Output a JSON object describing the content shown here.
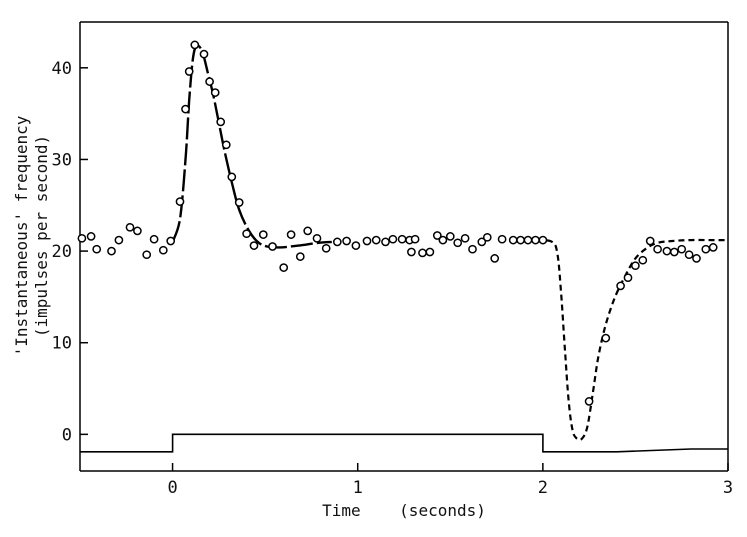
{
  "chart_data": {
    "type": "scatter",
    "xlabel": "Time    (seconds)",
    "ylabel_line1": "'Instantaneous' frequency",
    "ylabel_line2": "(impulses per second)",
    "xlim": [
      -0.5,
      3.0
    ],
    "ylim": [
      -4,
      45
    ],
    "x_ticks": [
      0,
      1,
      2,
      3
    ],
    "y_ticks": [
      0,
      10,
      20,
      30,
      40
    ],
    "grid": false,
    "legend": "none",
    "series": [
      {
        "values_xy": [
          [
            -0.49,
            21.4
          ],
          [
            -0.44,
            21.6
          ],
          [
            -0.41,
            20.2
          ],
          [
            -0.33,
            20.0
          ],
          [
            -0.29,
            21.2
          ],
          [
            -0.23,
            22.6
          ],
          [
            -0.19,
            22.2
          ],
          [
            -0.14,
            19.6
          ],
          [
            -0.1,
            21.3
          ],
          [
            -0.05,
            20.1
          ],
          [
            -0.01,
            21.1
          ],
          [
            0.04,
            25.4
          ],
          [
            0.07,
            35.5
          ],
          [
            0.09,
            39.6
          ],
          [
            0.12,
            42.5
          ],
          [
            0.17,
            41.5
          ],
          [
            0.2,
            38.5
          ],
          [
            0.23,
            37.3
          ],
          [
            0.26,
            34.1
          ],
          [
            0.29,
            31.6
          ],
          [
            0.32,
            28.1
          ],
          [
            0.36,
            25.3
          ],
          [
            0.4,
            21.9
          ],
          [
            0.44,
            20.6
          ],
          [
            0.49,
            21.8
          ],
          [
            0.54,
            20.5
          ],
          [
            0.6,
            18.2
          ],
          [
            0.64,
            21.8
          ],
          [
            0.69,
            19.4
          ],
          [
            0.73,
            22.2
          ],
          [
            0.78,
            21.4
          ],
          [
            0.83,
            20.3
          ],
          [
            0.89,
            21.0
          ],
          [
            0.94,
            21.1
          ],
          [
            0.99,
            20.6
          ],
          [
            1.05,
            21.1
          ],
          [
            1.1,
            21.2
          ],
          [
            1.15,
            21.0
          ],
          [
            1.19,
            21.3
          ],
          [
            1.24,
            21.3
          ],
          [
            1.28,
            21.2
          ],
          [
            1.29,
            19.9
          ],
          [
            1.31,
            21.3
          ],
          [
            1.35,
            19.8
          ],
          [
            1.39,
            19.9
          ],
          [
            1.43,
            21.7
          ],
          [
            1.46,
            21.2
          ],
          [
            1.5,
            21.6
          ],
          [
            1.54,
            20.9
          ],
          [
            1.58,
            21.4
          ],
          [
            1.62,
            20.2
          ],
          [
            1.67,
            21.0
          ],
          [
            1.7,
            21.5
          ],
          [
            1.74,
            19.2
          ],
          [
            1.78,
            21.3
          ],
          [
            1.84,
            21.2
          ],
          [
            1.88,
            21.2
          ],
          [
            1.92,
            21.2
          ],
          [
            1.96,
            21.2
          ],
          [
            2.0,
            21.2
          ],
          [
            2.25,
            3.6
          ],
          [
            2.34,
            10.5
          ],
          [
            2.42,
            16.2
          ],
          [
            2.46,
            17.1
          ],
          [
            2.5,
            18.4
          ],
          [
            2.54,
            19.0
          ],
          [
            2.58,
            21.1
          ],
          [
            2.62,
            20.2
          ],
          [
            2.67,
            20.0
          ],
          [
            2.71,
            19.9
          ],
          [
            2.75,
            20.2
          ],
          [
            2.79,
            19.6
          ],
          [
            2.83,
            19.2
          ],
          [
            2.88,
            20.2
          ],
          [
            2.92,
            20.4
          ]
        ]
      }
    ],
    "fitted_curve_solid": [
      [
        0.0,
        21.0
      ],
      [
        0.04,
        23.5
      ],
      [
        0.07,
        30.0
      ],
      [
        0.09,
        36.5
      ],
      [
        0.11,
        41.0
      ],
      [
        0.13,
        42.4
      ],
      [
        0.16,
        41.8
      ],
      [
        0.19,
        39.5
      ],
      [
        0.22,
        37.0
      ],
      [
        0.25,
        34.0
      ],
      [
        0.28,
        31.0
      ],
      [
        0.32,
        27.5
      ],
      [
        0.36,
        24.5
      ],
      [
        0.41,
        22.3
      ],
      [
        0.46,
        21.0
      ],
      [
        0.51,
        20.5
      ],
      [
        0.58,
        20.4
      ],
      [
        0.68,
        20.6
      ],
      [
        0.79,
        20.9
      ],
      [
        0.86,
        21.0
      ]
    ],
    "fitted_curve_dashed": [
      [
        1.86,
        21.2
      ],
      [
        1.95,
        21.2
      ],
      [
        2.05,
        21.0
      ],
      [
        2.08,
        19.5
      ],
      [
        2.1,
        15.0
      ],
      [
        2.12,
        9.0
      ],
      [
        2.14,
        3.5
      ],
      [
        2.16,
        0.5
      ],
      [
        2.18,
        -0.4
      ],
      [
        2.21,
        -0.5
      ],
      [
        2.24,
        0.8
      ],
      [
        2.27,
        4.5
      ],
      [
        2.3,
        8.5
      ],
      [
        2.34,
        12.0
      ],
      [
        2.39,
        15.0
      ],
      [
        2.45,
        17.5
      ],
      [
        2.5,
        19.2
      ],
      [
        2.56,
        20.3
      ],
      [
        2.62,
        20.9
      ],
      [
        2.7,
        21.1
      ],
      [
        2.8,
        21.2
      ],
      [
        2.92,
        21.2
      ],
      [
        3.0,
        21.2
      ]
    ],
    "stimulus_trace": [
      [
        -0.5,
        -1.9
      ],
      [
        0.0,
        -1.9
      ],
      [
        0.0,
        0.0
      ],
      [
        2.0,
        0.0
      ],
      [
        2.0,
        -1.9
      ],
      [
        2.4,
        -1.9
      ],
      [
        2.8,
        -1.6
      ],
      [
        3.0,
        -1.6
      ]
    ]
  }
}
